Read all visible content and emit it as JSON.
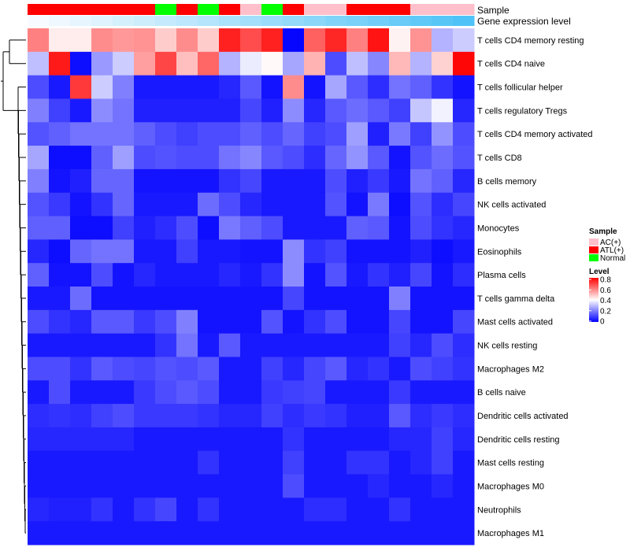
{
  "chart_data": {
    "type": "heatmap",
    "title": "",
    "annotation_tracks": [
      {
        "name": "Sample",
        "values": [
          "ATL(+)",
          "ATL(+)",
          "ATL(+)",
          "ATL(+)",
          "ATL(+)",
          "ATL(+)",
          "Normal",
          "ATL(+)",
          "Normal",
          "ATL(+)",
          "AC(+)",
          "Normal",
          "ATL(+)",
          "AC(+)",
          "AC(+)",
          "ATL(+)",
          "ATL(+)",
          "ATL(+)",
          "AC(+)",
          "AC(+)",
          "AC(+)"
        ]
      },
      {
        "name": "Gene expression level",
        "values": [
          0.0,
          0.05,
          0.1,
          0.15,
          0.2,
          0.25,
          0.3,
          0.35,
          0.4,
          0.45,
          0.5,
          0.55,
          0.6,
          0.65,
          0.7,
          0.75,
          0.8,
          0.85,
          0.9,
          0.95,
          1.0
        ]
      }
    ],
    "rows": [
      "T cells CD4 memory resting",
      "T cells CD4 naive",
      "T cells follicular helper",
      "T cells regulatory  Tregs",
      "T cells CD4 memory activated",
      "T cells CD8",
      "B cells memory",
      "NK cells activated",
      "Monocytes",
      "Eosinophils",
      "Plasma cells",
      "T cells gamma delta",
      "Mast cells activated",
      "NK cells resting",
      "Macrophages M2",
      "B cells naive",
      "Dendritic cells activated",
      "Dendritic cells resting",
      "Mast cells resting",
      "Macrophages M0",
      "Neutrophils",
      "Macrophages M1"
    ],
    "values": [
      [
        0.6,
        0.43,
        0.43,
        0.58,
        0.56,
        0.57,
        0.48,
        0.58,
        0.48,
        0.75,
        0.68,
        0.75,
        0.01,
        0.65,
        0.74,
        0.6,
        0.77,
        0.42,
        0.57,
        0.28,
        0.32
      ],
      [
        0.3,
        0.76,
        0.02,
        0.24,
        0.32,
        0.55,
        0.69,
        0.5,
        0.64,
        0.28,
        0.37,
        0.41,
        0.26,
        0.52,
        0.12,
        0.3,
        0.21,
        0.51,
        0.28,
        0.47,
        0.79
      ],
      [
        0.12,
        0.04,
        0.71,
        0.32,
        0.2,
        0.04,
        0.04,
        0.04,
        0.04,
        0.06,
        0.14,
        0.03,
        0.58,
        0.03,
        0.26,
        0.14,
        0.07,
        0.18,
        0.15,
        0.08,
        0.03
      ],
      [
        0.2,
        0.1,
        0.04,
        0.22,
        0.18,
        0.05,
        0.05,
        0.05,
        0.05,
        0.05,
        0.11,
        0.05,
        0.22,
        0.06,
        0.14,
        0.17,
        0.14,
        0.1,
        0.31,
        0.38,
        0.06
      ],
      [
        0.13,
        0.15,
        0.18,
        0.18,
        0.18,
        0.15,
        0.12,
        0.1,
        0.12,
        0.12,
        0.15,
        0.12,
        0.16,
        0.1,
        0.12,
        0.25,
        0.05,
        0.19,
        0.1,
        0.23,
        0.12
      ],
      [
        0.26,
        0.02,
        0.02,
        0.15,
        0.25,
        0.12,
        0.13,
        0.12,
        0.12,
        0.18,
        0.21,
        0.14,
        0.12,
        0.07,
        0.16,
        0.23,
        0.14,
        0.03,
        0.13,
        0.17,
        0.13
      ],
      [
        0.2,
        0.03,
        0.05,
        0.16,
        0.16,
        0.03,
        0.03,
        0.03,
        0.03,
        0.08,
        0.11,
        0.04,
        0.04,
        0.04,
        0.12,
        0.05,
        0.09,
        0.04,
        0.18,
        0.15,
        0.06
      ],
      [
        0.13,
        0.09,
        0.03,
        0.08,
        0.16,
        0.04,
        0.04,
        0.04,
        0.17,
        0.12,
        0.06,
        0.04,
        0.04,
        0.04,
        0.13,
        0.03,
        0.19,
        0.02,
        0.13,
        0.07,
        0.11
      ],
      [
        0.15,
        0.15,
        0.02,
        0.02,
        0.1,
        0.05,
        0.07,
        0.12,
        0.02,
        0.19,
        0.15,
        0.12,
        0.04,
        0.04,
        0.04,
        0.15,
        0.14,
        0.03,
        0.12,
        0.08,
        0.06
      ],
      [
        0.06,
        0.02,
        0.16,
        0.18,
        0.18,
        0.04,
        0.04,
        0.1,
        0.04,
        0.04,
        0.03,
        0.03,
        0.22,
        0.08,
        0.1,
        0.03,
        0.03,
        0.03,
        0.05,
        0.02,
        0.04
      ],
      [
        0.15,
        0.03,
        0.03,
        0.12,
        0.03,
        0.06,
        0.04,
        0.04,
        0.04,
        0.06,
        0.04,
        0.08,
        0.22,
        0.03,
        0.13,
        0.04,
        0.08,
        0.05,
        0.11,
        0.03,
        0.07
      ],
      [
        0.04,
        0.04,
        0.17,
        0.03,
        0.03,
        0.03,
        0.03,
        0.03,
        0.03,
        0.03,
        0.03,
        0.03,
        0.11,
        0.03,
        0.03,
        0.03,
        0.03,
        0.2,
        0.03,
        0.03,
        0.03
      ],
      [
        0.12,
        0.08,
        0.06,
        0.14,
        0.14,
        0.09,
        0.12,
        0.2,
        0.03,
        0.03,
        0.03,
        0.13,
        0.03,
        0.08,
        0.12,
        0.03,
        0.03,
        0.11,
        0.03,
        0.03,
        0.11
      ],
      [
        0.04,
        0.04,
        0.04,
        0.04,
        0.04,
        0.04,
        0.08,
        0.18,
        0.04,
        0.14,
        0.04,
        0.04,
        0.04,
        0.04,
        0.04,
        0.04,
        0.04,
        0.1,
        0.06,
        0.12,
        0.07
      ],
      [
        0.12,
        0.12,
        0.08,
        0.14,
        0.12,
        0.11,
        0.13,
        0.12,
        0.14,
        0.04,
        0.04,
        0.1,
        0.06,
        0.11,
        0.14,
        0.06,
        0.08,
        0.04,
        0.12,
        0.1,
        0.08
      ],
      [
        0.04,
        0.12,
        0.04,
        0.04,
        0.04,
        0.09,
        0.12,
        0.14,
        0.12,
        0.04,
        0.04,
        0.09,
        0.1,
        0.11,
        0.04,
        0.04,
        0.04,
        0.09,
        0.04,
        0.04,
        0.04
      ],
      [
        0.07,
        0.08,
        0.07,
        0.1,
        0.12,
        0.09,
        0.09,
        0.09,
        0.08,
        0.06,
        0.06,
        0.1,
        0.07,
        0.09,
        0.08,
        0.05,
        0.05,
        0.14,
        0.07,
        0.09,
        0.07
      ],
      [
        0.06,
        0.06,
        0.06,
        0.06,
        0.06,
        0.04,
        0.04,
        0.04,
        0.04,
        0.04,
        0.04,
        0.04,
        0.08,
        0.04,
        0.04,
        0.04,
        0.04,
        0.06,
        0.06,
        0.1,
        0.06
      ],
      [
        0.04,
        0.04,
        0.04,
        0.04,
        0.04,
        0.04,
        0.04,
        0.04,
        0.08,
        0.04,
        0.04,
        0.04,
        0.1,
        0.04,
        0.04,
        0.08,
        0.08,
        0.04,
        0.06,
        0.1,
        0.04
      ],
      [
        0.04,
        0.04,
        0.04,
        0.04,
        0.04,
        0.04,
        0.04,
        0.04,
        0.04,
        0.04,
        0.04,
        0.04,
        0.12,
        0.04,
        0.04,
        0.04,
        0.06,
        0.04,
        0.04,
        0.06,
        0.04
      ],
      [
        0.06,
        0.05,
        0.05,
        0.08,
        0.04,
        0.08,
        0.11,
        0.04,
        0.08,
        0.04,
        0.04,
        0.04,
        0.04,
        0.07,
        0.07,
        0.04,
        0.04,
        0.08,
        0.04,
        0.04,
        0.04
      ],
      [
        0.04,
        0.04,
        0.04,
        0.04,
        0.04,
        0.04,
        0.04,
        0.04,
        0.04,
        0.04,
        0.04,
        0.04,
        0.04,
        0.04,
        0.04,
        0.04,
        0.04,
        0.04,
        0.04,
        0.04,
        0.04
      ]
    ],
    "legends": {
      "sample": {
        "title": "Sample",
        "entries": [
          {
            "label": "AC(+)",
            "color": "#FFC0CB"
          },
          {
            "label": "ATL(+)",
            "color": "#FF0000"
          },
          {
            "label": "Normal",
            "color": "#00FF00"
          }
        ]
      },
      "level": {
        "title": "Level",
        "ticks": [
          "0.8",
          "0.6",
          "0.4",
          "0.2",
          "0"
        ],
        "tick_values": [
          0.8,
          0.6,
          0.4,
          0.2,
          0.0
        ],
        "range": [
          0,
          0.8
        ]
      }
    },
    "color_scale": {
      "low": "#0000FF",
      "mid": "#FFFFFF",
      "high": "#FF0000",
      "min": 0,
      "mid_value": 0.4,
      "max": 0.8
    },
    "annotation_colors": {
      "gene_low": "#F7FBFF",
      "gene_high": "#4FC3F7"
    }
  }
}
